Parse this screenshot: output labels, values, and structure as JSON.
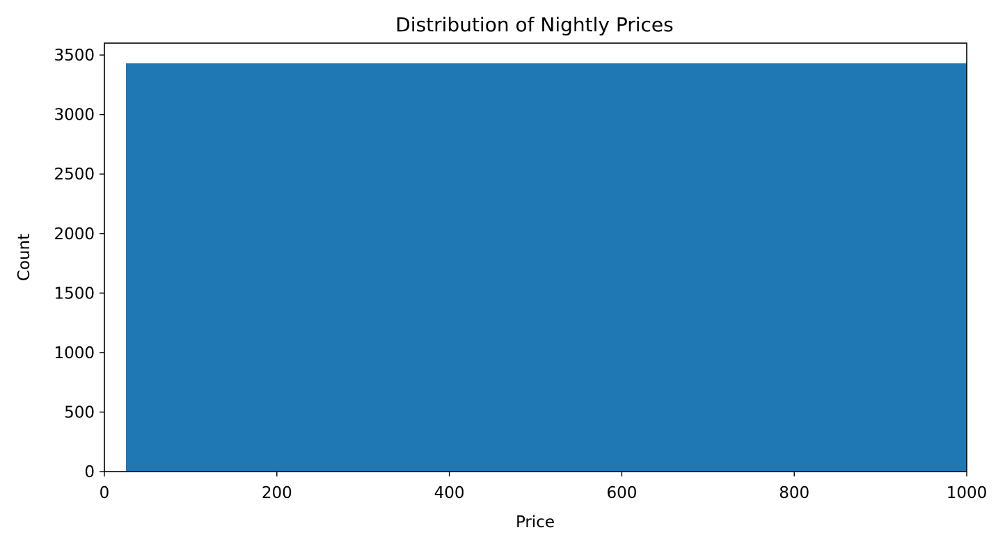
{
  "chart_data": {
    "type": "bar",
    "title": "Distribution of Nightly Prices",
    "xlabel": "Price",
    "ylabel": "Count",
    "xlim": [
      0,
      1000
    ],
    "ylim": [
      0,
      3600
    ],
    "x_ticks": [
      0,
      200,
      400,
      600,
      800,
      1000
    ],
    "y_ticks": [
      0,
      500,
      1000,
      1500,
      2000,
      2500,
      3000,
      3500
    ],
    "bins": [
      {
        "start": 25,
        "end": 1000,
        "count": 3430
      }
    ],
    "grid": false,
    "color": "#1f77b4"
  }
}
